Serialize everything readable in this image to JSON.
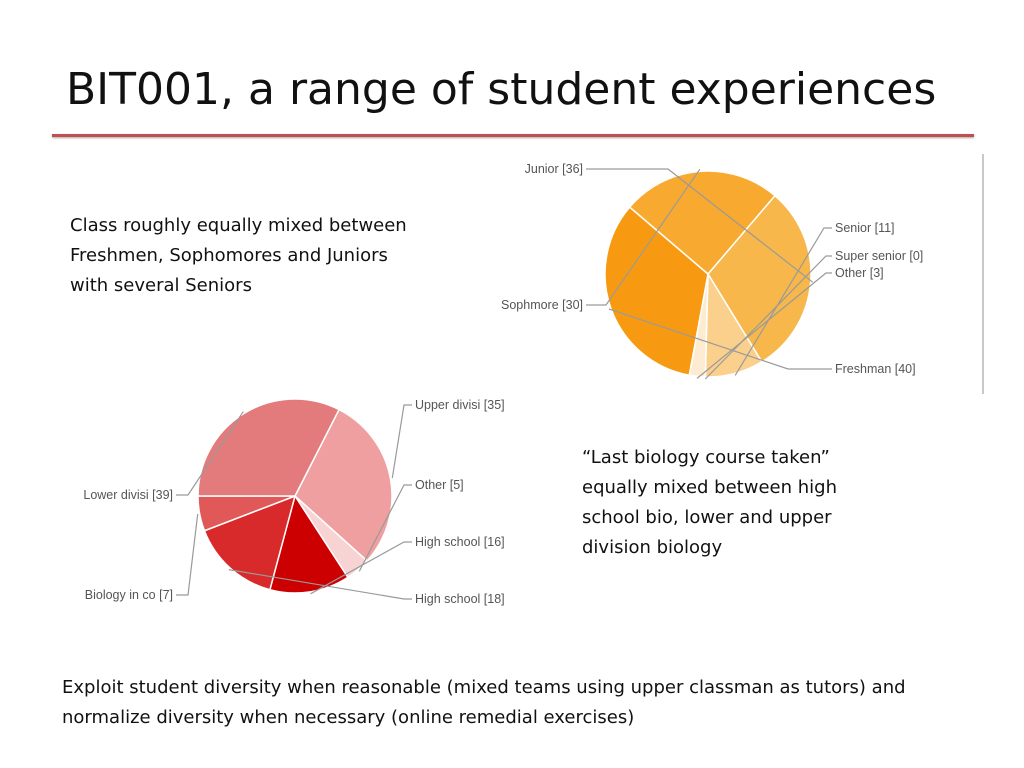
{
  "slide": {
    "title": "BIT001, a range of student experiences",
    "text_class": "Class roughly equally mixed between Freshmen, Sophomores and Juniors with several Seniors",
    "text_biology": "“Last biology course taken” equally mixed between high school bio, lower and upper division biology",
    "text_footer": "Exploit student diversity when reasonable (mixed teams using upper classman as tutors) and normalize diversity when necessary (online remedial exercises)"
  },
  "chart_data": [
    {
      "type": "pie",
      "slices": [
        {
          "label": "Junior [36]",
          "value": 36,
          "color": "#f7b74a"
        },
        {
          "label": "Senior [11]",
          "value": 11,
          "color": "#fbcf8c"
        },
        {
          "label": "Super senior [0]",
          "value": 0,
          "color": "#fde2b8"
        },
        {
          "label": "Other [3]",
          "value": 3,
          "color": "#fdebd2"
        },
        {
          "label": "Freshman [40]",
          "value": 40,
          "color": "#f79a12"
        },
        {
          "label": "Sophmore [30]",
          "value": 30,
          "color": "#f8a930"
        }
      ]
    },
    {
      "type": "pie",
      "slices": [
        {
          "label": "Upper divisi [35]",
          "value": 35,
          "color": "#ef9fa0"
        },
        {
          "label": "Other [5]",
          "value": 5,
          "color": "#f8d3d4"
        },
        {
          "label": "High school [16]",
          "value": 16,
          "color": "#cc0000"
        },
        {
          "label": "High school [18]",
          "value": 18,
          "color": "#d92a2b"
        },
        {
          "label": "Biology in co [7]",
          "value": 7,
          "color": "#e05858"
        },
        {
          "label": "Lower divisi [39]",
          "value": 39,
          "color": "#e37a7b"
        }
      ]
    }
  ]
}
